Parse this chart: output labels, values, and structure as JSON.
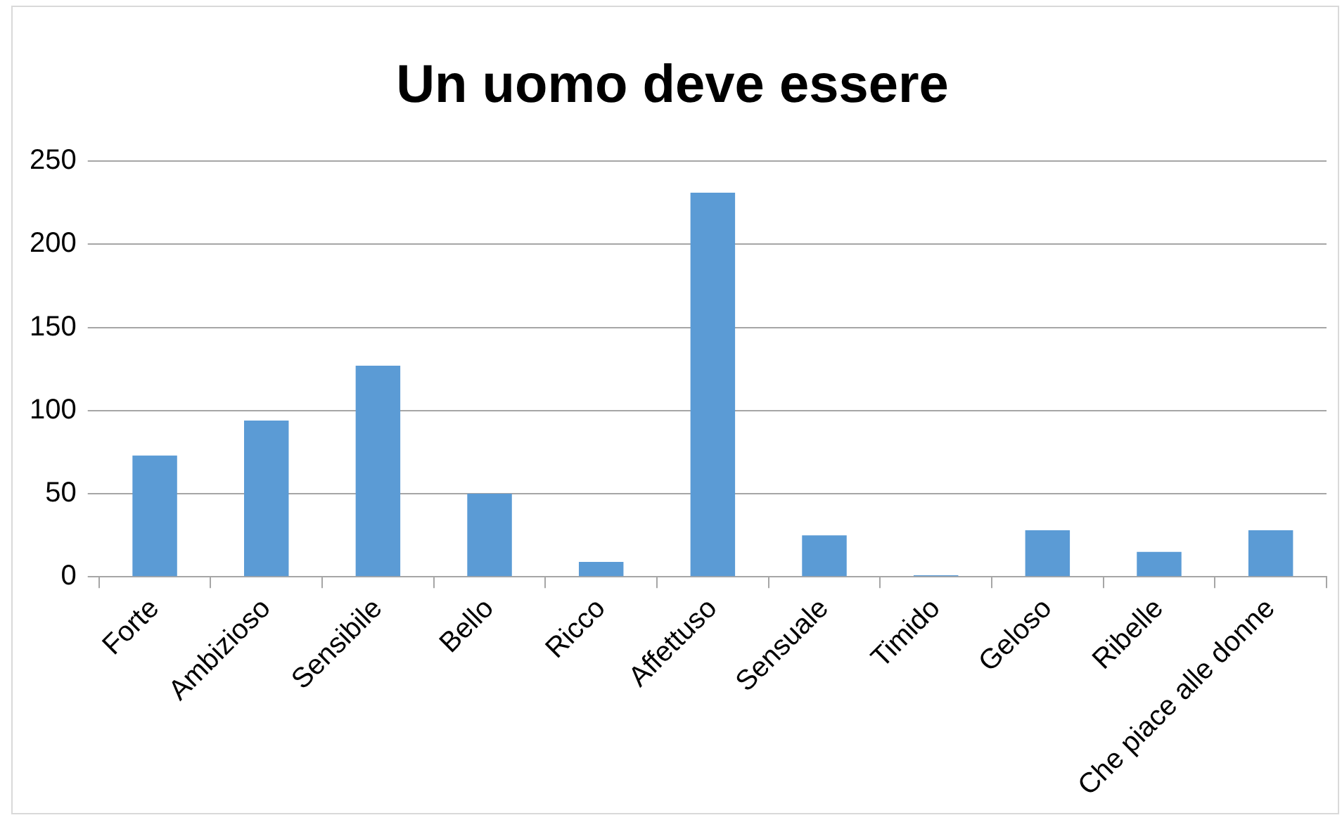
{
  "chart_data": {
    "type": "bar",
    "title": "Un uomo deve essere",
    "categories": [
      "Forte",
      "Ambizioso",
      "Sensibile",
      "Bello",
      "Ricco",
      "Affettuso",
      "Sensuale",
      "Timido",
      "Geloso",
      "Ribelle",
      "Che piace alle donne"
    ],
    "values": [
      73,
      94,
      127,
      50,
      9,
      231,
      25,
      1,
      28,
      15,
      28
    ],
    "color": "#5b9bd5",
    "ylim": [
      0,
      250
    ],
    "yticks": [
      0,
      50,
      100,
      150,
      200,
      250
    ],
    "grid": "y"
  }
}
